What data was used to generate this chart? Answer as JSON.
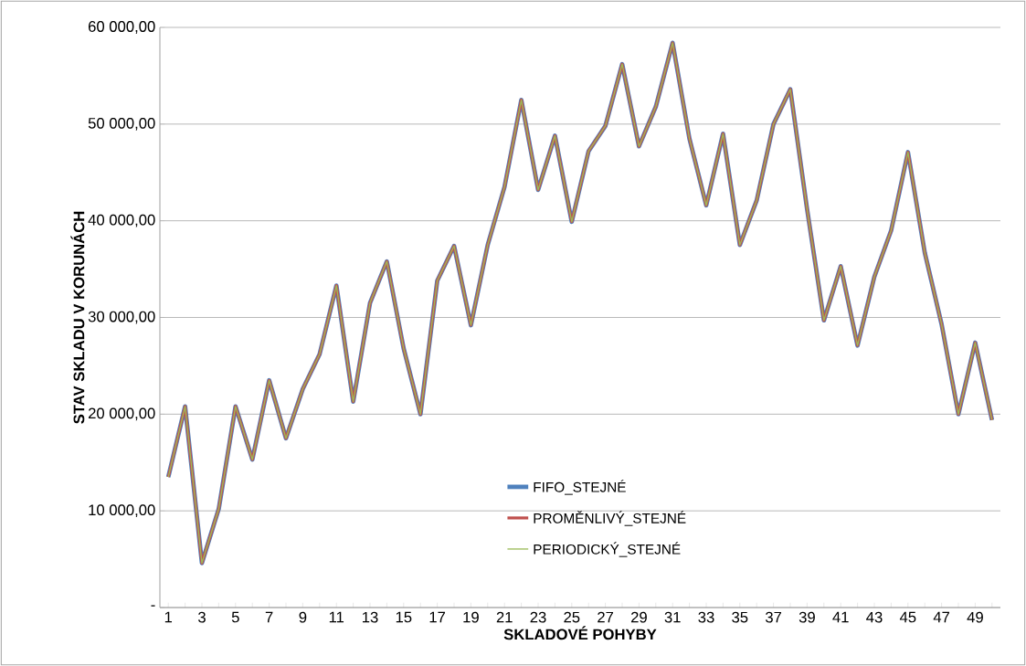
{
  "chart_data": {
    "type": "line",
    "xlabel": "SKLADOVÉ POHYBY",
    "ylabel": "STAV SKLADU V KORUNÁCH",
    "categories": [
      "1",
      null,
      "3",
      null,
      "5",
      null,
      "7",
      null,
      "9",
      null,
      "11",
      null,
      "13",
      null,
      "15",
      null,
      "17",
      null,
      "19",
      null,
      "21",
      null,
      "23",
      null,
      "25",
      null,
      "27",
      null,
      "29",
      null,
      "31",
      null,
      "33",
      null,
      "35",
      null,
      "37",
      null,
      "39",
      null,
      "41",
      null,
      "43",
      null,
      "45",
      null,
      "47",
      null,
      "49",
      null
    ],
    "series": [
      {
        "name": "FIFO_STEJNÉ",
        "color": "#4f81bd",
        "values": [
          13500,
          20800,
          4600,
          10200,
          20800,
          15300,
          23500,
          17500,
          22600,
          26200,
          33300,
          21300,
          31500,
          35800,
          26800,
          20000,
          33800,
          37400,
          29200,
          37500,
          43500,
          52500,
          43200,
          48800,
          39900,
          47200,
          49800,
          56200,
          47700,
          51800,
          58400,
          48500,
          41600,
          49000,
          37500,
          42100,
          50000,
          53600,
          41200,
          29700,
          35300,
          27100,
          34200,
          39000,
          47100,
          36700,
          29300,
          20000,
          27400,
          19400
        ]
      },
      {
        "name": "PROMĚNLIVÝ_STEJNÉ",
        "color": "#c0504d",
        "values": [
          13500,
          20800,
          4600,
          10200,
          20800,
          15300,
          23500,
          17500,
          22600,
          26200,
          33300,
          21300,
          31500,
          35800,
          26800,
          20000,
          33800,
          37400,
          29200,
          37500,
          43500,
          52500,
          43200,
          48800,
          39900,
          47200,
          49800,
          56200,
          47700,
          51800,
          58400,
          48500,
          41600,
          49000,
          37500,
          42100,
          50000,
          53600,
          41200,
          29700,
          35300,
          27100,
          34200,
          39000,
          47100,
          36700,
          29300,
          20000,
          27400,
          19400
        ]
      },
      {
        "name": "PERIODICKÝ_STEJNÉ",
        "color": "#9bbb59",
        "values": [
          13500,
          20800,
          4600,
          10200,
          20800,
          15300,
          23500,
          17500,
          22600,
          26200,
          33300,
          21300,
          31500,
          35800,
          26800,
          20000,
          33800,
          37400,
          29200,
          37500,
          43500,
          52500,
          43200,
          48800,
          39900,
          47200,
          49800,
          56200,
          47700,
          51800,
          58400,
          48500,
          41600,
          49000,
          37500,
          42100,
          50000,
          53600,
          41200,
          29700,
          35300,
          27100,
          34200,
          39000,
          47100,
          36700,
          29300,
          20000,
          27400,
          19400
        ]
      }
    ],
    "ylim": [
      0,
      60000
    ],
    "yticks": [
      {
        "value": 0,
        "label": "-"
      },
      {
        "value": 10000,
        "label": "10 000,00"
      },
      {
        "value": 20000,
        "label": "20 000,00"
      },
      {
        "value": 30000,
        "label": "30 000,00"
      },
      {
        "value": 40000,
        "label": "40 000,00"
      },
      {
        "value": 50000,
        "label": "50 000,00"
      },
      {
        "value": 60000,
        "label": "60 000,00"
      }
    ],
    "grid": "y",
    "legend": "bottom",
    "marker": "none",
    "line_style": "solid"
  }
}
